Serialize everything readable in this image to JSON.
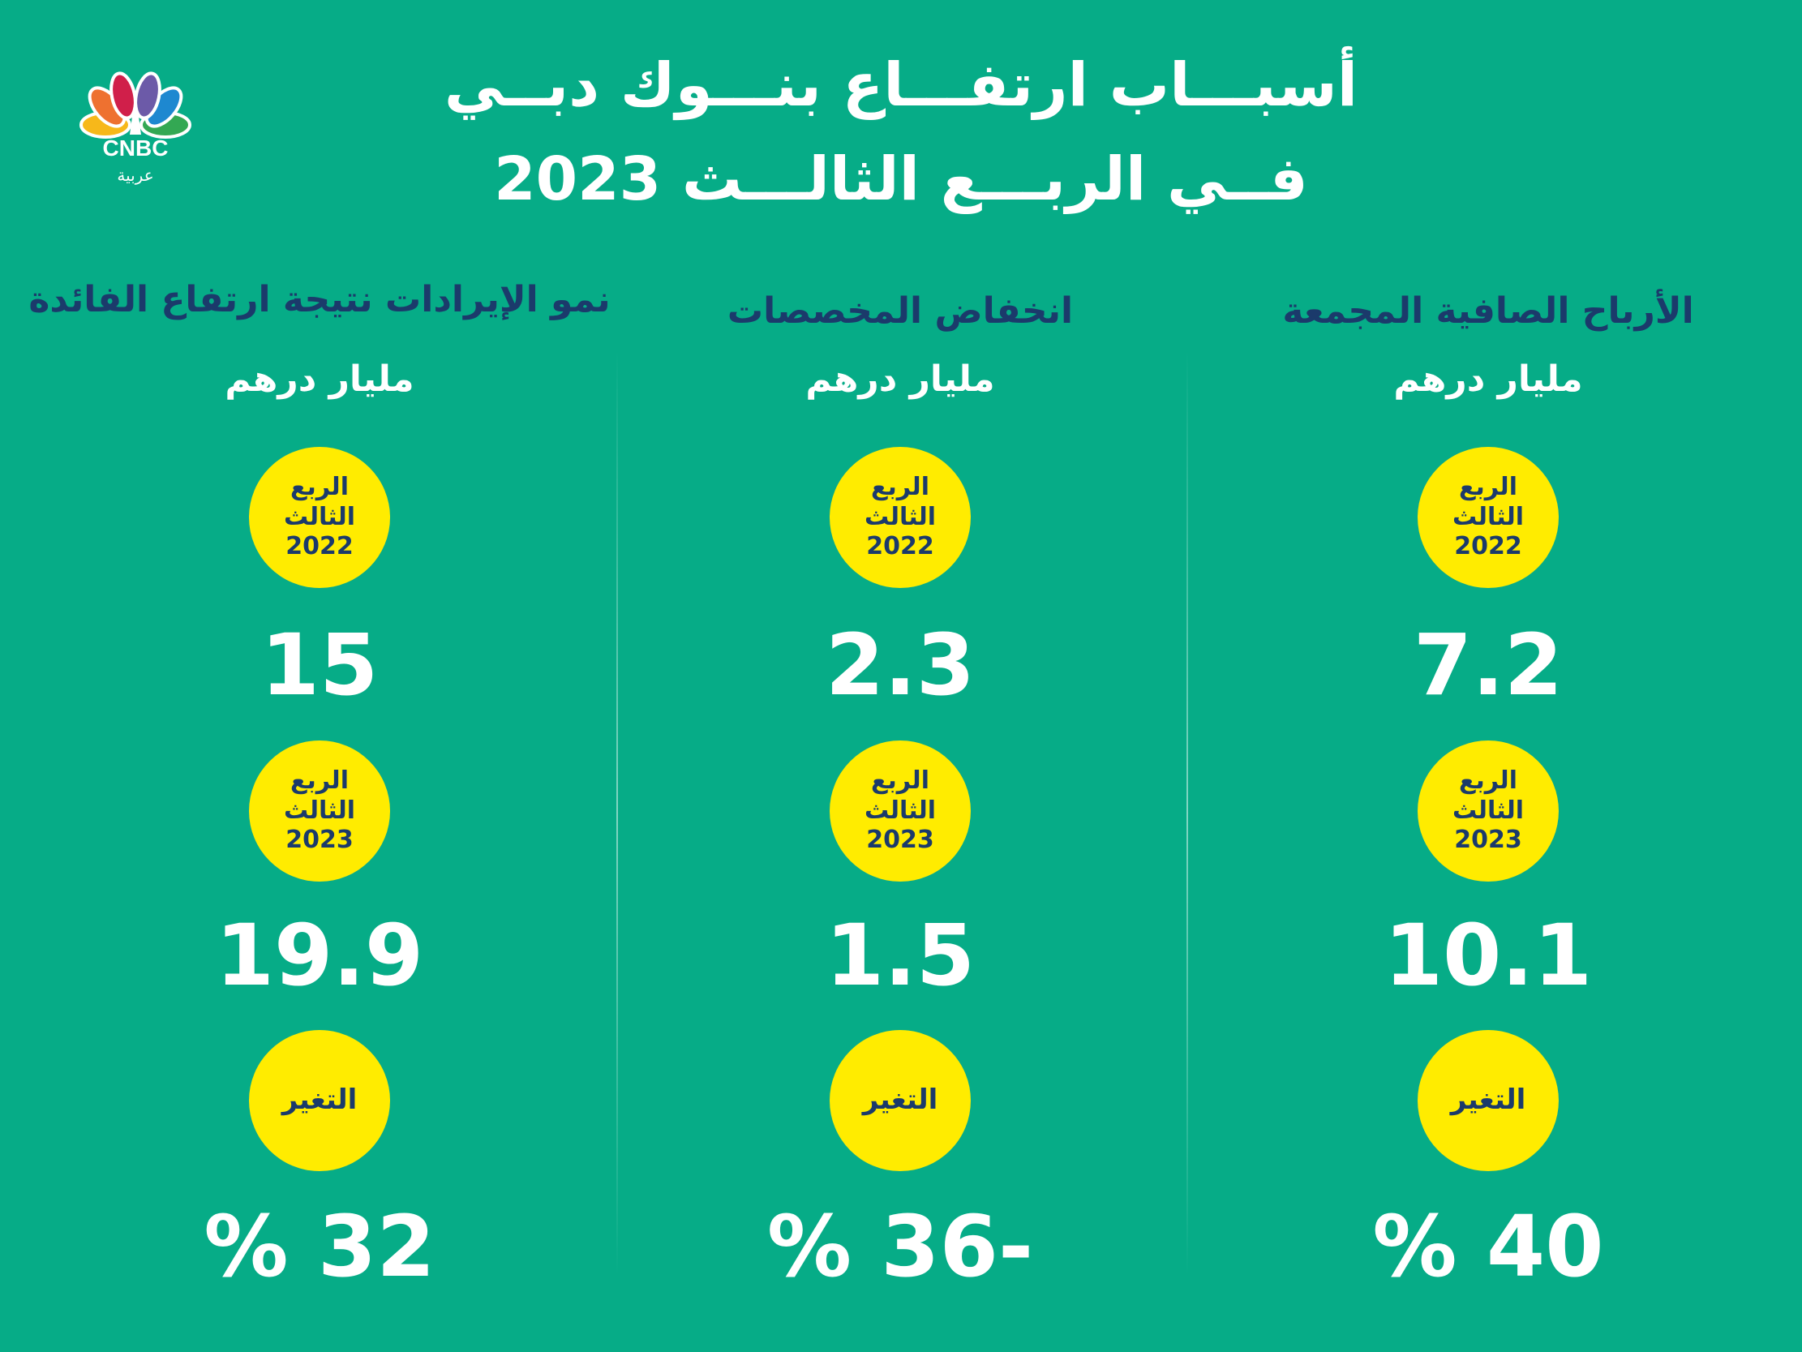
{
  "title": {
    "line1": "أسبـــاب ارتفـــاع بنـــوك دبــي",
    "line2": "فــي الربـــع الثالـــث 2023"
  },
  "logo": {
    "brand": "CNBC",
    "sub": "عربية"
  },
  "colors": {
    "background": "#06ac87",
    "navy": "#1b3a6b",
    "yellow": "#ffec00"
  },
  "columns": [
    {
      "header": "الأرباح الصافية المجمعة",
      "unit": "مليار درهم",
      "q_label1": "الربع",
      "q_label2": "الثالث",
      "year_prev": "2022",
      "value_prev": "7.2",
      "year_curr": "2023",
      "value_curr": "10.1",
      "change_label": "التغير",
      "change": "40 %"
    },
    {
      "header": "انخفاض المخصصات",
      "unit": "مليار درهم",
      "q_label1": "الربع",
      "q_label2": "الثالث",
      "year_prev": "2022",
      "value_prev": "2.3",
      "year_curr": "2023",
      "value_curr": "1.5",
      "change_label": "التغير",
      "change": "-36 %"
    },
    {
      "header": "نمو الإيرادات نتيجة ارتفاع الفائدة",
      "unit": "مليار درهم",
      "q_label1": "الربع",
      "q_label2": "الثالث",
      "year_prev": "2022",
      "value_prev": "15",
      "year_curr": "2023",
      "value_curr": "19.9",
      "change_label": "التغير",
      "change": "32 %"
    }
  ]
}
